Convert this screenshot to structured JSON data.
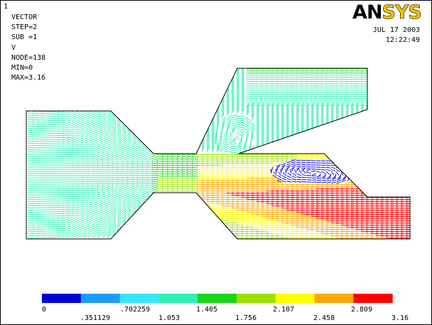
{
  "window": {
    "number": "1"
  },
  "logo": {
    "an": "AN",
    "sys": "SYS"
  },
  "info": {
    "lines": [
      "VECTOR",
      "STEP=2",
      "SUB =1",
      "V",
      "NODE=138",
      "MIN=0",
      "MAX=3.16"
    ]
  },
  "datetime": {
    "date": "JUL 17 2003",
    "time": "12:22:49"
  },
  "legend": {
    "colors": [
      "#0000d8",
      "#1c9cff",
      "#38e4ff",
      "#2ef0b4",
      "#1ad41a",
      "#9ce000",
      "#ffff00",
      "#ffa800",
      "#ff0000"
    ],
    "labels_bottom": [
      "0",
      ".702259",
      "1.405",
      "2.107",
      "2.809"
    ],
    "labels_top": [
      ".351129",
      "1.053",
      "1.756",
      "2.458",
      "3.16"
    ]
  }
}
